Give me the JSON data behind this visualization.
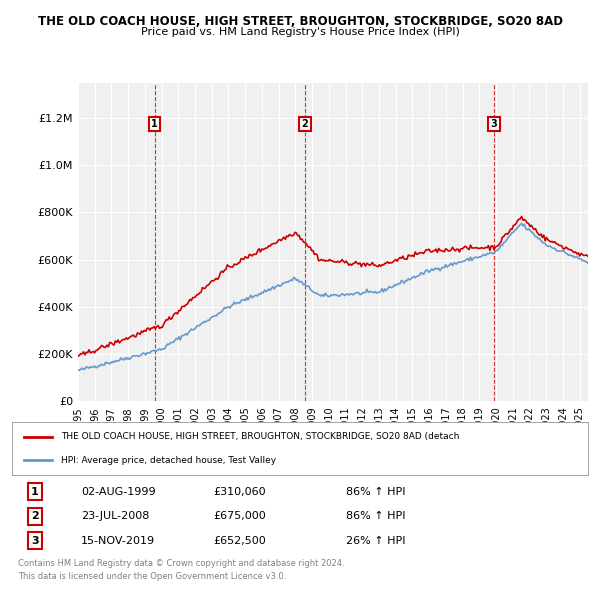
{
  "title1": "THE OLD COACH HOUSE, HIGH STREET, BROUGHTON, STOCKBRIDGE, SO20 8AD",
  "title2": "Price paid vs. HM Land Registry's House Price Index (HPI)",
  "legend_line1": "THE OLD COACH HOUSE, HIGH STREET, BROUGHTON, STOCKBRIDGE, SO20 8AD (detach",
  "legend_line2": "HPI: Average price, detached house, Test Valley",
  "footer1": "Contains HM Land Registry data © Crown copyright and database right 2024.",
  "footer2": "This data is licensed under the Open Government Licence v3.0.",
  "purchases": [
    {
      "num": 1,
      "date": "02-AUG-1999",
      "price": 310060,
      "pct": "86% ↑ HPI",
      "year": 1999.58
    },
    {
      "num": 2,
      "date": "23-JUL-2008",
      "price": 675000,
      "pct": "86% ↑ HPI",
      "year": 2008.56
    },
    {
      "num": 3,
      "date": "15-NOV-2019",
      "price": 652500,
      "pct": "26% ↑ HPI",
      "year": 2019.88
    }
  ],
  "red_line_color": "#cc0000",
  "blue_line_color": "#6699cc",
  "background_color": "#f0f0f0",
  "grid_color": "#ffffff",
  "ylim": [
    0,
    1350000
  ],
  "xlim_start": 1995.0,
  "xlim_end": 2025.5
}
